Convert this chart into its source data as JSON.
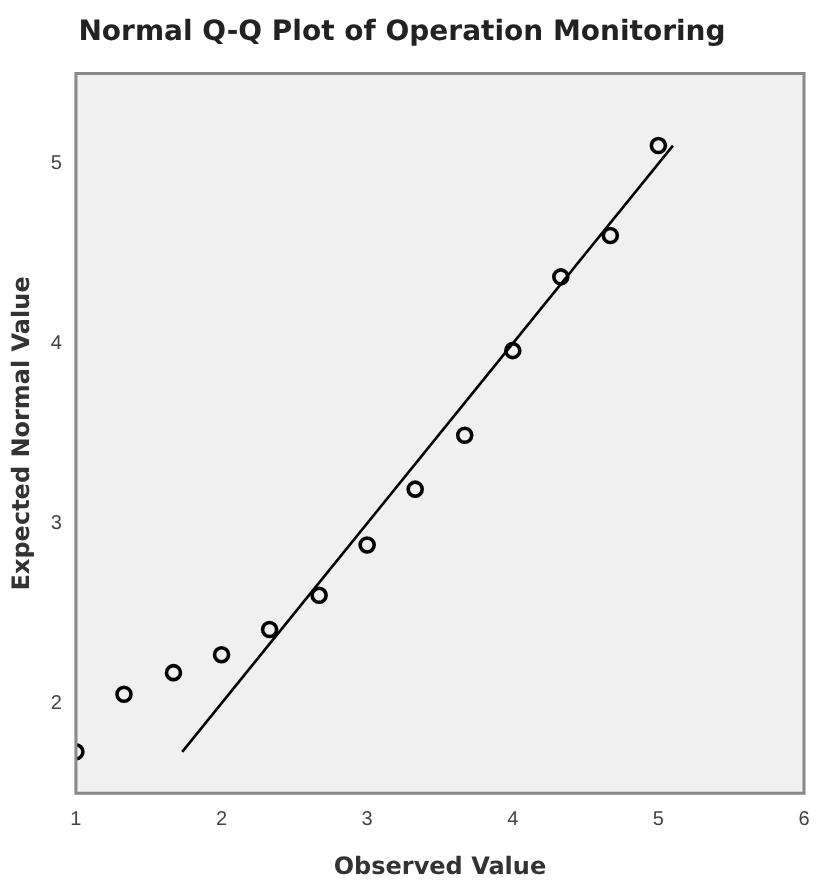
{
  "chart_data": {
    "type": "scatter",
    "title": "Normal Q-Q Plot of Operation Monitoring",
    "xlabel": "Observed Value",
    "ylabel": "Expected Normal Value",
    "xlim": [
      1,
      6
    ],
    "xticks": [
      1,
      2,
      3,
      4,
      5,
      6
    ],
    "ylim": [
      1.5,
      5.5
    ],
    "yticks": [
      2,
      3,
      4,
      5
    ],
    "grid": false,
    "legend": false,
    "marker": "circle",
    "series": [
      {
        "type": "scatter",
        "color": "#000000",
        "x": [
          1,
          1.33,
          1.67,
          2,
          2.33,
          2.67,
          3,
          3.33,
          3.67,
          4,
          4.33,
          4.67,
          5
        ],
        "values": [
          1.73,
          2.05,
          2.17,
          2.27,
          2.41,
          2.6,
          2.88,
          3.19,
          3.49,
          3.96,
          4.37,
          4.6,
          5.1
        ]
      },
      {
        "type": "line",
        "color": "#000000",
        "marker": "none",
        "x": [
          1.73,
          5.1
        ],
        "values": [
          1.73,
          5.1
        ]
      }
    ]
  }
}
